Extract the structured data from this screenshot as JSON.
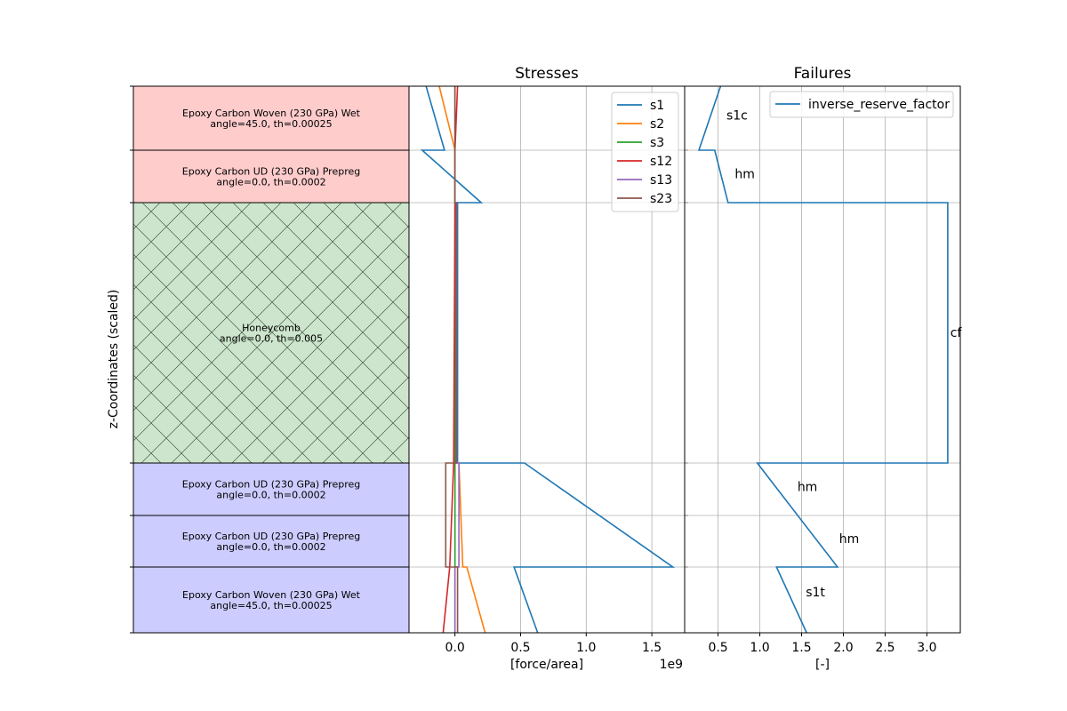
{
  "figure": {
    "ylabel": "z-Coordinates (scaled)"
  },
  "layup": {
    "plies": [
      {
        "material": "Epoxy Carbon Woven (230 GPa) Wet",
        "info": "angle=45.0, th=0.00025",
        "fill": "#ffcccc",
        "hatch": false
      },
      {
        "material": "Epoxy Carbon UD (230 GPa) Prepreg",
        "info": "angle=0.0, th=0.0002",
        "fill": "#ffcccc",
        "hatch": false
      },
      {
        "material": "Honeycomb",
        "info": "angle=0.0, th=0.005",
        "fill": "#cce5cc",
        "hatch": true
      },
      {
        "material": "Epoxy Carbon UD (230 GPa) Prepreg",
        "info": "angle=0.0, th=0.0002",
        "fill": "#ccccff",
        "hatch": false
      },
      {
        "material": "Epoxy Carbon UD (230 GPa) Prepreg",
        "info": "angle=0.0, th=0.0002",
        "fill": "#ccccff",
        "hatch": false
      },
      {
        "material": "Epoxy Carbon Woven (230 GPa) Wet",
        "info": "angle=45.0, th=0.00025",
        "fill": "#ccccff",
        "hatch": false
      }
    ]
  },
  "chart_data": [
    {
      "type": "line",
      "title": "Stresses",
      "xlabel": "[force/area]",
      "x_multiplier": "1e9",
      "xlim": [
        -0.35,
        1.75
      ],
      "xticks": [
        0.0,
        0.5,
        1.0,
        1.5
      ],
      "xtick_labels": [
        "0.0",
        "0.5",
        "1.0",
        "1.5"
      ],
      "grid": true,
      "legend_position": "top-right",
      "y_levels_note": "ply interfaces from top (0) to bottom (6)",
      "series": [
        {
          "name": "s1",
          "color": "#1f77b4",
          "points": [
            [
              -0.22,
              0
            ],
            [
              -0.08,
              1
            ],
            [
              -0.25,
              1
            ],
            [
              0.2,
              2
            ],
            [
              0.02,
              2
            ],
            [
              0.02,
              4
            ],
            [
              0.53,
              4
            ],
            [
              1.66,
              6
            ],
            [
              0.45,
              6
            ],
            [
              0.63,
              8
            ]
          ]
        },
        {
          "name": "s2",
          "color": "#ff7f0e",
          "points": [
            [
              -0.12,
              0
            ],
            [
              0.0,
              1
            ],
            [
              0.0,
              2
            ],
            [
              0.0,
              4
            ],
            [
              0.03,
              4
            ],
            [
              0.06,
              6
            ],
            [
              0.09,
              6
            ],
            [
              0.23,
              8
            ]
          ]
        },
        {
          "name": "s3",
          "color": "#2ca02c",
          "points": [
            [
              0.0,
              0
            ],
            [
              0.0,
              8
            ]
          ]
        },
        {
          "name": "s12",
          "color": "#d62728",
          "points": [
            [
              0.02,
              0
            ],
            [
              -0.0,
              1
            ],
            [
              -0.0,
              2
            ],
            [
              -0.01,
              4
            ],
            [
              -0.04,
              6
            ],
            [
              -0.09,
              8
            ]
          ]
        },
        {
          "name": "s13",
          "color": "#9467bd",
          "points": [
            [
              0.0,
              0
            ],
            [
              0.0,
              2
            ],
            [
              0.01,
              2
            ],
            [
              0.01,
              4
            ],
            [
              0.03,
              4
            ],
            [
              0.03,
              6
            ],
            [
              0.0,
              6
            ],
            [
              0.0,
              8
            ]
          ]
        },
        {
          "name": "s23",
          "color": "#8c564b",
          "points": [
            [
              0.0,
              0
            ],
            [
              0.0,
              2
            ],
            [
              0.01,
              2
            ],
            [
              0.01,
              4
            ],
            [
              -0.07,
              4
            ],
            [
              -0.07,
              6
            ],
            [
              0.02,
              6
            ],
            [
              0.02,
              8
            ]
          ]
        }
      ]
    },
    {
      "type": "line",
      "title": "Failures",
      "xlabel": "[-]",
      "xlim": [
        0.1,
        3.4
      ],
      "xticks": [
        0.5,
        1.0,
        1.5,
        2.0,
        2.5,
        3.0
      ],
      "xtick_labels": [
        "0.5",
        "1.0",
        "1.5",
        "2.0",
        "2.5",
        "3.0"
      ],
      "grid": true,
      "legend_position": "top-right",
      "series": [
        {
          "name": "inverse_reserve_factor",
          "color": "#1f77b4",
          "points": [
            [
              0.53,
              0
            ],
            [
              0.27,
              1
            ],
            [
              0.46,
              1
            ],
            [
              0.62,
              2
            ],
            [
              3.25,
              2
            ],
            [
              3.25,
              4
            ],
            [
              0.97,
              4
            ],
            [
              1.93,
              6
            ],
            [
              1.2,
              6
            ],
            [
              1.56,
              8
            ]
          ]
        }
      ],
      "annotations": [
        {
          "text": "s1c",
          "x": 0.6,
          "y": 0.45
        },
        {
          "text": "hm",
          "x": 0.7,
          "y": 1.45
        },
        {
          "text": "cf",
          "x": 3.28,
          "y": 3.0
        },
        {
          "text": "hm",
          "x": 1.45,
          "y": 4.45
        },
        {
          "text": "hm",
          "x": 1.95,
          "y": 5.45
        },
        {
          "text": "s1t",
          "x": 1.55,
          "y": 6.75
        }
      ]
    }
  ]
}
